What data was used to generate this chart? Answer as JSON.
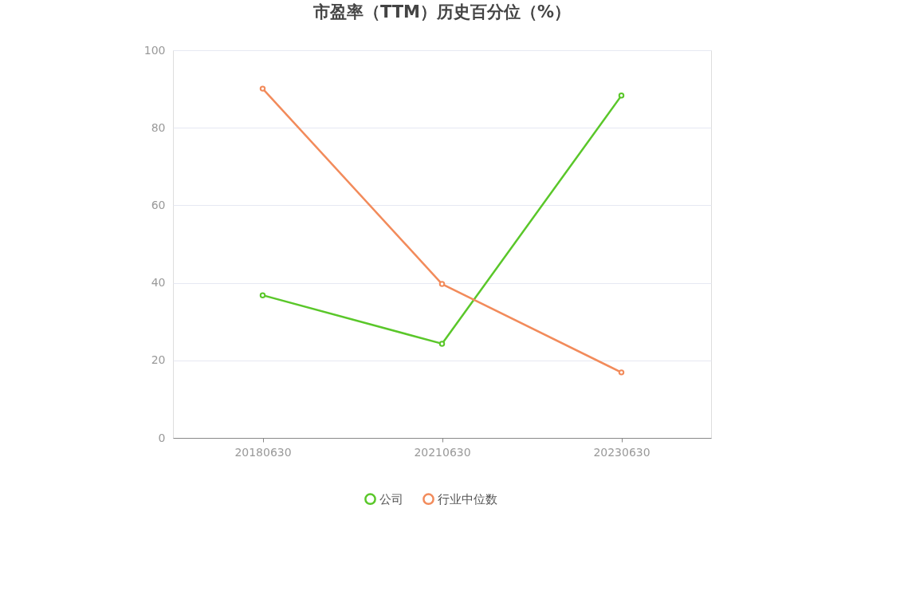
{
  "chart_data": {
    "type": "line",
    "title": "市盈率（TTM）历史百分位（%）",
    "categories": [
      "20180630",
      "20210630",
      "20230630"
    ],
    "series": [
      {
        "name": "公司",
        "color": "#5ac72a",
        "values": [
          36.8,
          24.3,
          88.3
        ]
      },
      {
        "name": "行业中位数",
        "color": "#f28b5b",
        "values": [
          90.1,
          39.7,
          16.9
        ]
      }
    ],
    "ylim": [
      0,
      100
    ],
    "yticks": [
      0,
      20,
      40,
      60,
      80,
      100
    ],
    "grid": "y",
    "legend": "bottom",
    "marker": "circle",
    "line_style": "solid"
  }
}
